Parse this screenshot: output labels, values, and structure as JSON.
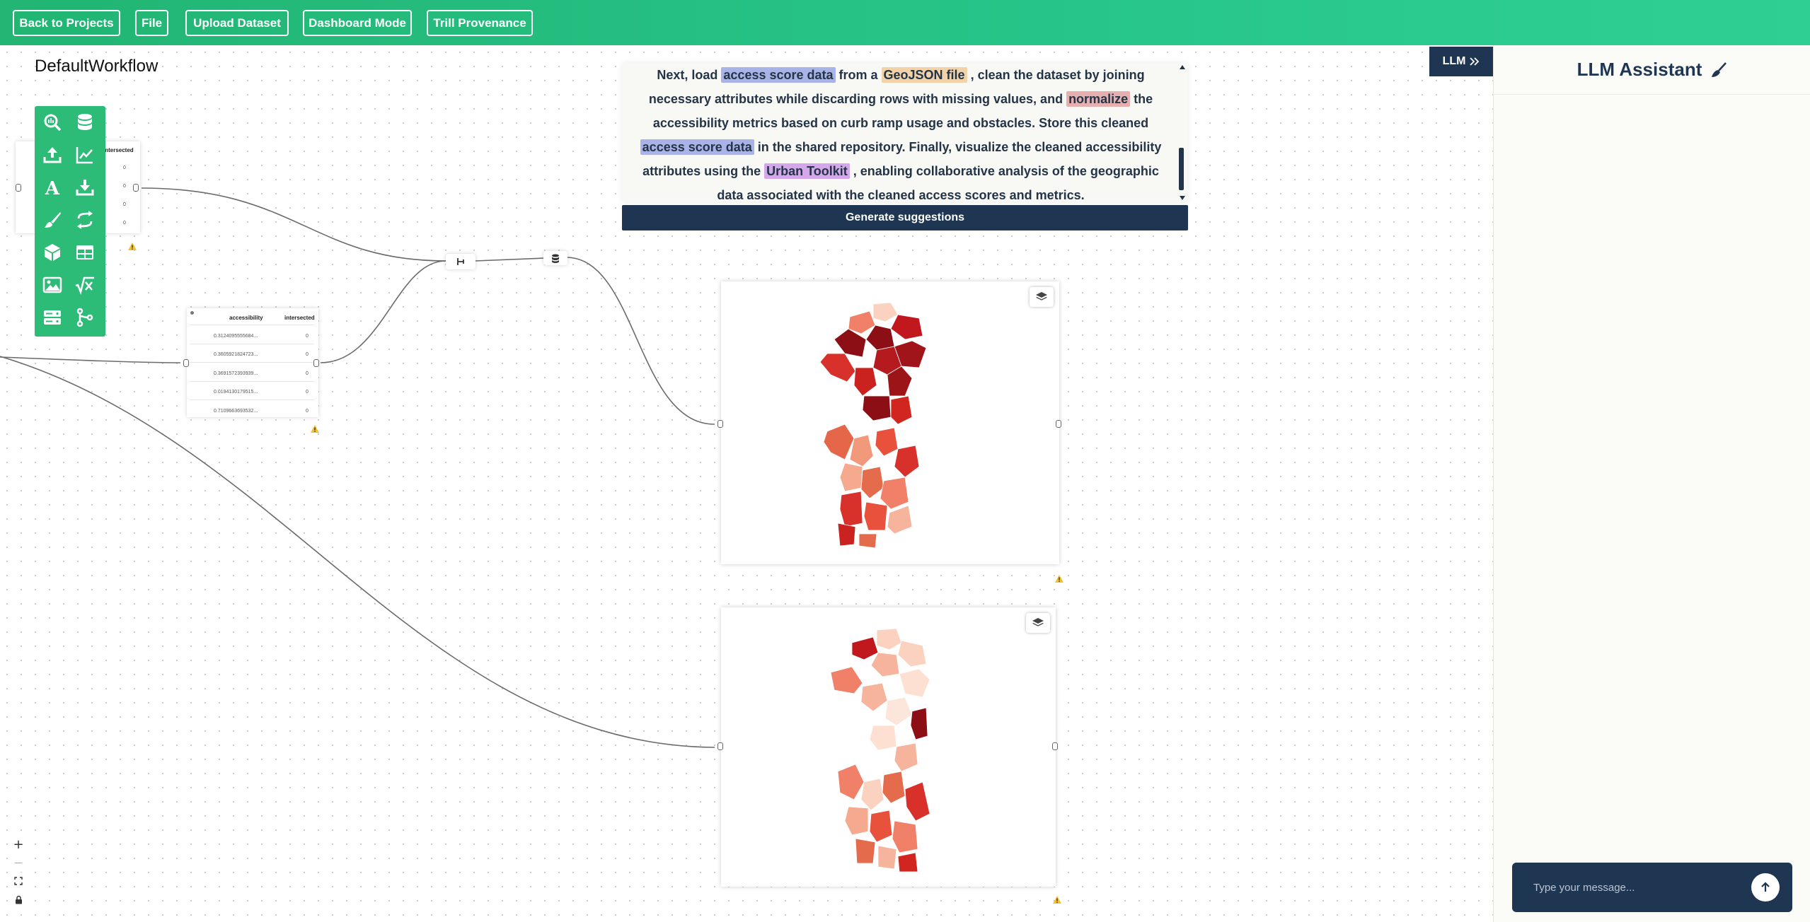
{
  "topbar": {
    "back_label": "Back to Projects",
    "file_label": "File",
    "upload_label": "Upload Dataset",
    "dashboard_label": "Dashboard Mode",
    "trill_label": "Trill Provenance",
    "color": "#27c58a"
  },
  "workflow": {
    "title": "DefaultWorkflow"
  },
  "toolbox": {
    "icons": [
      "search-icon",
      "database-icon",
      "upload-icon",
      "chart-line-icon",
      "text-icon",
      "download-icon",
      "brush-icon",
      "transform-icon",
      "cube-icon",
      "table-icon",
      "image-icon",
      "formula-icon",
      "server-icon",
      "merge-icon"
    ]
  },
  "table_node_1": {
    "header": "intersected",
    "values": [
      "0",
      "0",
      "0",
      "0"
    ]
  },
  "table_node_2": {
    "col1": "accessibility",
    "col2": "intersected",
    "rows": [
      {
        "a": "0.3124095555684...",
        "b": "0"
      },
      {
        "a": "0.3605921824723...",
        "b": "0"
      },
      {
        "a": "0.3691572393939...",
        "b": "0"
      },
      {
        "a": "0.0194130179515...",
        "b": "0"
      },
      {
        "a": "0.7109663693532...",
        "b": "0"
      }
    ]
  },
  "prompt": {
    "p1": "Next, load ",
    "hl1": "access score data",
    "p2": " from a ",
    "hl2": "GeoJSON file",
    "p3": " , clean the dataset by joining necessary attributes while discarding rows with missing values, and ",
    "hl3": "normalize",
    "p4": " the accessibility metrics based on curb ramp usage and obstacles. Store this cleaned ",
    "hl4": "access score data",
    "p5": " in the shared repository. Finally, visualize the cleaned accessibility attributes using the ",
    "hl5": "Urban Toolkit",
    "p6": " , enabling collaborative analysis of the geographic data associated with the cleaned access scores and metrics.",
    "generate_label": "Generate suggestions"
  },
  "llm": {
    "toggle_label": "LLM",
    "title": "LLM Assistant",
    "placeholder": "Type your message..."
  },
  "zoom": {
    "plus": "+",
    "minus": "—"
  },
  "colors": {
    "navy": "#1f3652",
    "map_dark": "#8b0f14",
    "map_mid": "#e0402e",
    "map_light": "#fbd2c0"
  }
}
